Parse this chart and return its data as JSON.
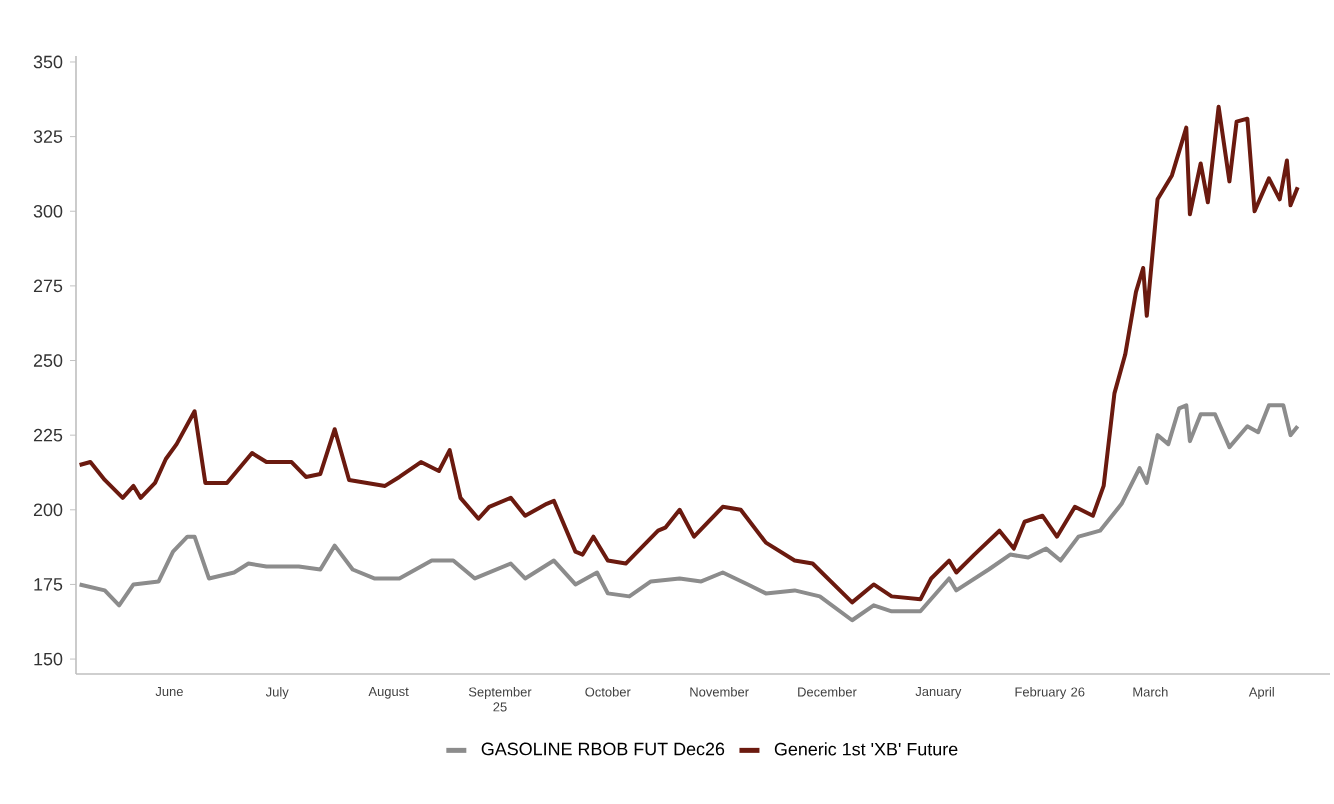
{
  "chart_data": {
    "type": "line",
    "legend": "bottom",
    "xlim": [
      "2025-05-20",
      "2026-05-04"
    ],
    "ylim": [
      145,
      352
    ],
    "yticks": [
      150,
      175,
      200,
      225,
      250,
      275,
      300,
      325,
      350
    ],
    "xticks": [
      {
        "value": "2025-06-15",
        "label": "June"
      },
      {
        "value": "2025-07-15",
        "label": "July"
      },
      {
        "value": "2025-08-15",
        "label": "August"
      },
      {
        "value": "2025-09-15",
        "label": "September 25"
      },
      {
        "value": "2025-10-15",
        "label": "October"
      },
      {
        "value": "2025-11-15",
        "label": "November"
      },
      {
        "value": "2025-12-15",
        "label": "December"
      },
      {
        "value": "2026-01-15",
        "label": "January"
      },
      {
        "value": "2026-02-15",
        "label": "February 26"
      },
      {
        "value": "2026-03-15",
        "label": "March"
      },
      {
        "value": "2026-04-15",
        "label": "April"
      }
    ],
    "series": [
      {
        "name": "GASOLINE RBOB FUT Dec26",
        "color": "#8c8c8c",
        "x": [
          "2025-05-21",
          "2025-05-28",
          "2025-06-01",
          "2025-06-05",
          "2025-06-12",
          "2025-06-16",
          "2025-06-20",
          "2025-06-22",
          "2025-06-26",
          "2025-07-03",
          "2025-07-07",
          "2025-07-12",
          "2025-07-21",
          "2025-07-27",
          "2025-07-31",
          "2025-08-05",
          "2025-08-11",
          "2025-08-18",
          "2025-08-27",
          "2025-09-02",
          "2025-09-08",
          "2025-09-18",
          "2025-09-22",
          "2025-09-30",
          "2025-10-06",
          "2025-10-12",
          "2025-10-15",
          "2025-10-21",
          "2025-10-27",
          "2025-11-04",
          "2025-11-10",
          "2025-11-16",
          "2025-11-23",
          "2025-11-28",
          "2025-12-06",
          "2025-12-13",
          "2025-12-22",
          "2025-12-28",
          "2026-01-02",
          "2026-01-10",
          "2026-01-18",
          "2026-01-20",
          "2026-01-29",
          "2026-02-04",
          "2026-02-09",
          "2026-02-14",
          "2026-02-18",
          "2026-02-23",
          "2026-03-01",
          "2026-03-07",
          "2026-03-12",
          "2026-03-14",
          "2026-03-17",
          "2026-03-20",
          "2026-03-23",
          "2026-03-25",
          "2026-03-26",
          "2026-03-29",
          "2026-04-02",
          "2026-04-06",
          "2026-04-11",
          "2026-04-14",
          "2026-04-17",
          "2026-04-21",
          "2026-04-23",
          "2026-04-25"
        ],
        "values": [
          175,
          173,
          168,
          175,
          176,
          186,
          191,
          191,
          177,
          179,
          182,
          181,
          181,
          180,
          188,
          180,
          177,
          177,
          183,
          183,
          177,
          182,
          177,
          183,
          175,
          179,
          172,
          171,
          176,
          177,
          176,
          179,
          175,
          172,
          173,
          171,
          163,
          168,
          166,
          166,
          177,
          173,
          180,
          185,
          184,
          187,
          183,
          191,
          193,
          202,
          214,
          209,
          225,
          222,
          234,
          235,
          223,
          232,
          232,
          221,
          228,
          226,
          235,
          235,
          225,
          228
        ]
      },
      {
        "name": "Generic 1st 'XB' Future",
        "color": "#6b1a0f",
        "x": [
          "2025-05-21",
          "2025-05-24",
          "2025-05-28",
          "2025-06-02",
          "2025-06-05",
          "2025-06-07",
          "2025-06-11",
          "2025-06-14",
          "2025-06-17",
          "2025-06-22",
          "2025-06-25",
          "2025-07-01",
          "2025-07-08",
          "2025-07-12",
          "2025-07-19",
          "2025-07-23",
          "2025-07-27",
          "2025-07-31",
          "2025-08-04",
          "2025-08-14",
          "2025-08-18",
          "2025-08-24",
          "2025-08-29",
          "2025-09-01",
          "2025-09-04",
          "2025-09-09",
          "2025-09-12",
          "2025-09-18",
          "2025-09-22",
          "2025-09-28",
          "2025-09-30",
          "2025-10-06",
          "2025-10-08",
          "2025-10-11",
          "2025-10-15",
          "2025-10-20",
          "2025-10-29",
          "2025-10-31",
          "2025-11-04",
          "2025-11-08",
          "2025-11-16",
          "2025-11-21",
          "2025-11-28",
          "2025-12-06",
          "2025-12-11",
          "2025-12-22",
          "2025-12-28",
          "2026-01-02",
          "2026-01-10",
          "2026-01-13",
          "2026-01-18",
          "2026-01-20",
          "2026-01-25",
          "2026-02-01",
          "2026-02-05",
          "2026-02-08",
          "2026-02-13",
          "2026-02-17",
          "2026-02-22",
          "2026-02-27",
          "2026-03-02",
          "2026-03-05",
          "2026-03-08",
          "2026-03-11",
          "2026-03-13",
          "2026-03-14",
          "2026-03-17",
          "2026-03-21",
          "2026-03-25",
          "2026-03-26",
          "2026-03-29",
          "2026-03-31",
          "2026-04-03",
          "2026-04-06",
          "2026-04-08",
          "2026-04-11",
          "2026-04-13",
          "2026-04-17",
          "2026-04-20",
          "2026-04-22",
          "2026-04-23",
          "2026-04-25"
        ],
        "values": [
          215,
          216,
          210,
          204,
          208,
          204,
          209,
          217,
          222,
          233,
          209,
          209,
          219,
          216,
          216,
          211,
          212,
          227,
          210,
          208,
          211,
          216,
          213,
          220,
          204,
          197,
          201,
          204,
          198,
          202,
          203,
          186,
          185,
          191,
          183,
          182,
          193,
          194,
          200,
          191,
          201,
          200,
          189,
          183,
          182,
          169,
          175,
          171,
          170,
          177,
          183,
          179,
          185,
          193,
          187,
          196,
          198,
          191,
          201,
          198,
          208,
          239,
          252,
          273,
          281,
          265,
          304,
          312,
          328,
          299,
          316,
          303,
          335,
          310,
          330,
          331,
          300,
          311,
          304,
          317,
          302,
          308
        ]
      }
    ]
  }
}
